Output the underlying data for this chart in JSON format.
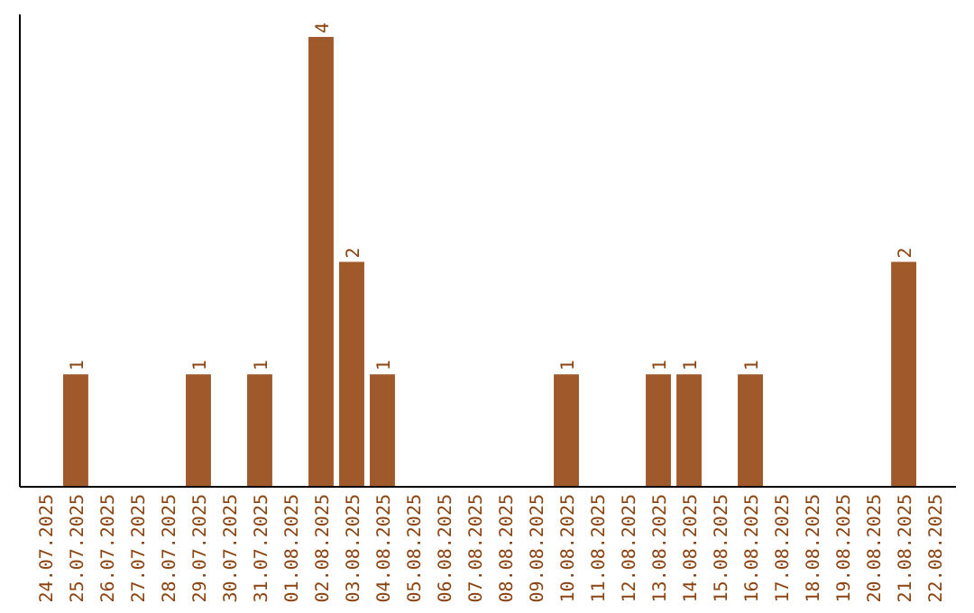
{
  "chart_data": {
    "type": "bar",
    "categories": [
      "24.07.2025",
      "25.07.2025",
      "26.07.2025",
      "27.07.2025",
      "28.07.2025",
      "29.07.2025",
      "30.07.2025",
      "31.07.2025",
      "01.08.2025",
      "02.08.2025",
      "03.08.2025",
      "04.08.2025",
      "05.08.2025",
      "06.08.2025",
      "07.08.2025",
      "08.08.2025",
      "09.08.2025",
      "10.08.2025",
      "11.08.2025",
      "12.08.2025",
      "13.08.2025",
      "14.08.2025",
      "15.08.2025",
      "16.08.2025",
      "17.08.2025",
      "18.08.2025",
      "19.08.2025",
      "20.08.2025",
      "21.08.2025",
      "22.08.2025"
    ],
    "values": [
      0,
      1,
      0,
      0,
      0,
      1,
      0,
      1,
      0,
      4,
      2,
      1,
      0,
      0,
      0,
      0,
      0,
      1,
      0,
      0,
      1,
      1,
      0,
      1,
      0,
      0,
      0,
      0,
      2,
      0
    ],
    "value_labels": [
      null,
      "1",
      null,
      null,
      null,
      "1",
      null,
      "1",
      null,
      "4",
      "2",
      "1",
      null,
      null,
      null,
      null,
      null,
      "1",
      null,
      null,
      "1",
      "1",
      null,
      "1",
      null,
      null,
      null,
      null,
      "2",
      null
    ],
    "color": "#a0592b"
  }
}
